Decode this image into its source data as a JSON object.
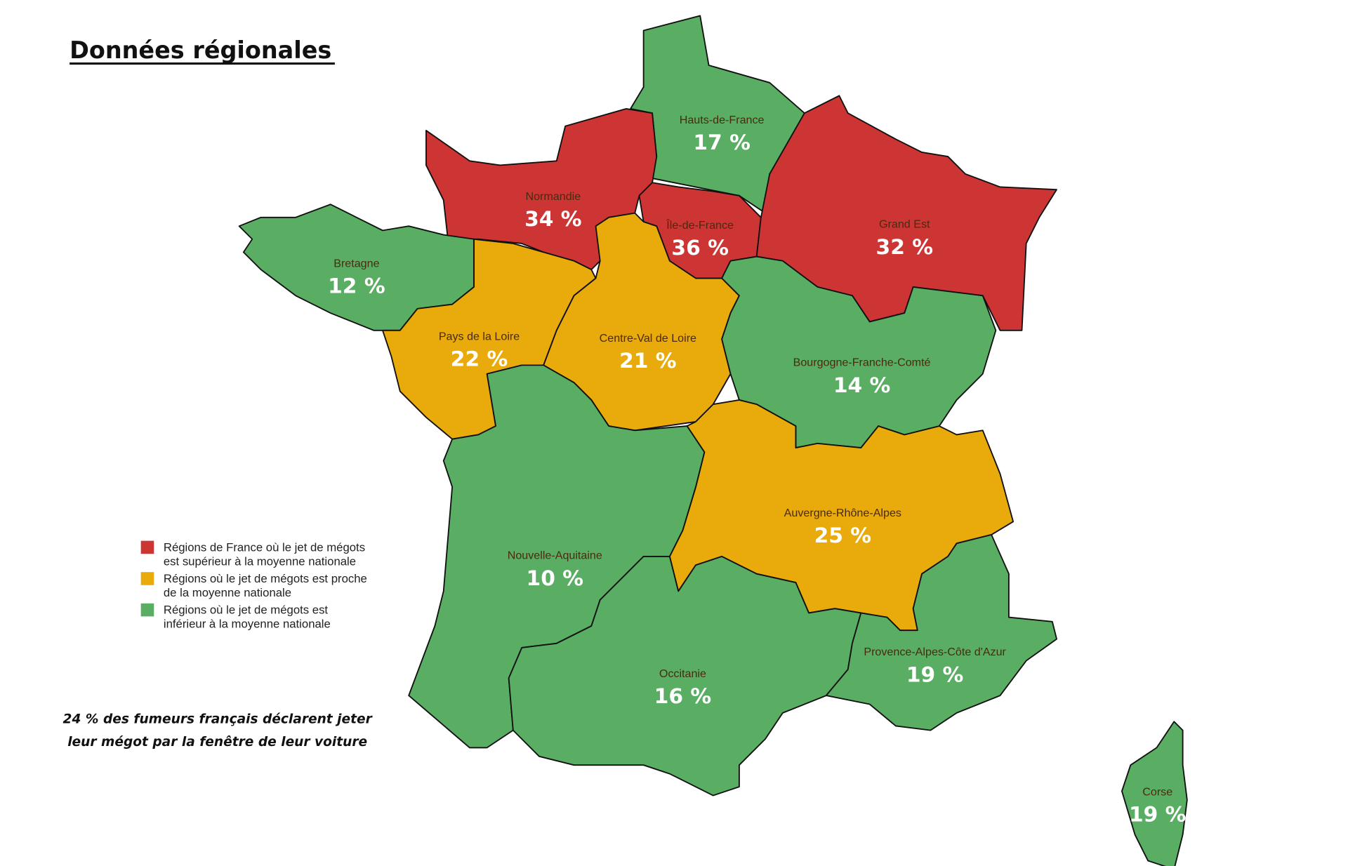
{
  "header": {
    "title": "Données régionales"
  },
  "regions": [
    {
      "name": "Hauts-de-France",
      "value": "17 %",
      "color": "#5aae63"
    },
    {
      "name": "Normandie",
      "value": "34 %",
      "color": "#cd3434"
    },
    {
      "name": "Île-de-France",
      "value": "36 %",
      "color": "#cd3434"
    },
    {
      "name": "Grand Est",
      "value": "32 %",
      "color": "#cd3434"
    },
    {
      "name": "Bretagne",
      "value": "12 %",
      "color": "#5aae63"
    },
    {
      "name": "Pays de la Loire",
      "value": "22 %",
      "color": "#e9aa0c"
    },
    {
      "name": "Centre-Val de Loire",
      "value": "21 %",
      "color": "#e9aa0c"
    },
    {
      "name": "Bourgogne-Franche-Comté",
      "value": "14 %",
      "color": "#5aae63"
    },
    {
      "name": "Auvergne-Rhône-Alpes",
      "value": "25 %",
      "color": "#e9aa0c"
    },
    {
      "name": "Nouvelle-Aquitaine",
      "value": "10 %",
      "color": "#5aae63"
    },
    {
      "name": "Occitanie",
      "value": "16 %",
      "color": "#5aae63"
    },
    {
      "name": "Provence-Alpes-Côte d'Azur",
      "value": "19 %",
      "color": "#5aae63"
    },
    {
      "name": "Corse",
      "value": "19 %",
      "color": "#5aae63"
    }
  ],
  "legend": [
    {
      "color": "#cd3434",
      "lines": [
        "Régions de France où le jet de mégots",
        "est supérieur à la moyenne nationale"
      ]
    },
    {
      "color": "#e9aa0c",
      "lines": [
        "Régions où le jet de mégots est proche",
        "de la moyenne nationale"
      ]
    },
    {
      "color": "#5aae63",
      "lines": [
        "Régions où le jet de mégots est",
        "inférieur à la moyenne nationale"
      ]
    }
  ],
  "note": [
    "24 % des fumeurs français déclarent jeter",
    "leur mégot par la fenêtre de leur voiture"
  ]
}
